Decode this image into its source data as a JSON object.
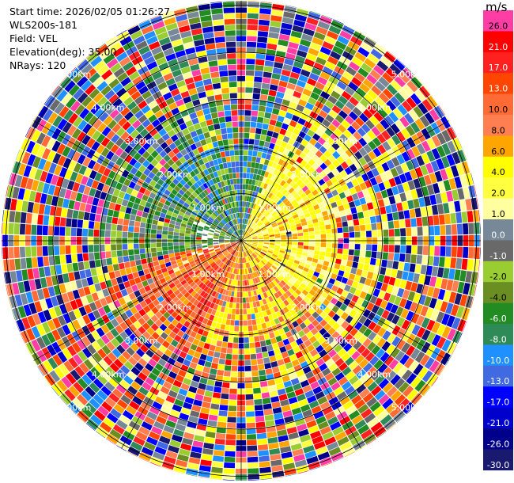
{
  "header": {
    "start_time": "Start time: 2026/02/05 01:26:27",
    "instrument": "WLS200s-181",
    "field": "Field: VEL",
    "elevation": "Elevation(deg): 35.00",
    "nrays": "NRays: 120"
  },
  "ppi": {
    "field": "VEL",
    "nrays": 120,
    "range_rings_km": [
      1.0,
      2.0,
      3.0,
      4.0,
      5.0
    ],
    "ring_labels": [
      "1.00km",
      "2.00km",
      "3.00km",
      "4.00km",
      "5.00km"
    ],
    "colors": {
      "ring_line": "#000000",
      "label_text": "#ffffff"
    }
  },
  "colorbar": {
    "unit": "m/s",
    "levels": [
      {
        "label": "26.0",
        "color": "#ff3ea5"
      },
      {
        "label": "21.0",
        "color": "#ff0000"
      },
      {
        "label": "17.0",
        "color": "#ff2020"
      },
      {
        "label": "13.0",
        "color": "#ff4500"
      },
      {
        "label": "10.0",
        "color": "#ff6a35"
      },
      {
        "label": "8.0",
        "color": "#ff7f50"
      },
      {
        "label": "6.0",
        "color": "#ffa500"
      },
      {
        "label": "4.0",
        "color": "#ffff00"
      },
      {
        "label": "2.0",
        "color": "#ffff40"
      },
      {
        "label": "1.0",
        "color": "#ffffa0"
      },
      {
        "label": "0.0",
        "color": "#778899"
      },
      {
        "label": "-1.0",
        "color": "#696969"
      },
      {
        "label": "-2.0",
        "color": "#9acd32"
      },
      {
        "label": "-4.0",
        "color": "#6b8e23"
      },
      {
        "label": "-6.0",
        "color": "#228b22"
      },
      {
        "label": "-8.0",
        "color": "#2e8b57"
      },
      {
        "label": "-10.0",
        "color": "#1e90ff"
      },
      {
        "label": "-13.0",
        "color": "#4169e1"
      },
      {
        "label": "-17.0",
        "color": "#0000ff"
      },
      {
        "label": "-21.0",
        "color": "#0000cd"
      },
      {
        "label": "-26.0",
        "color": "#00008b"
      },
      {
        "label": "-30.0",
        "color": "#191970"
      }
    ]
  }
}
